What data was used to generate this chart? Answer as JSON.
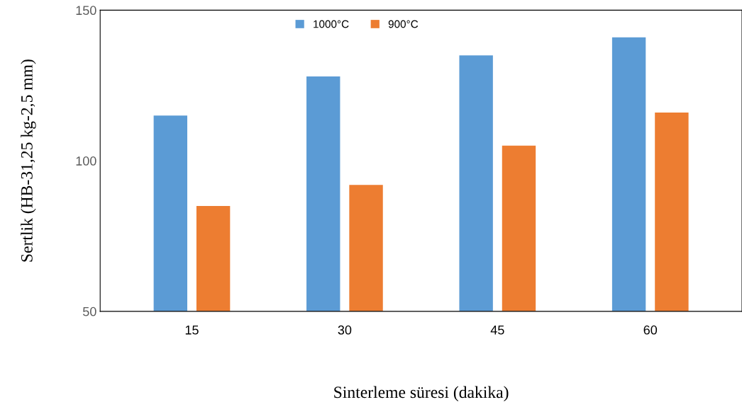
{
  "chart_data": {
    "type": "bar",
    "categories": [
      "15",
      "30",
      "45",
      "60"
    ],
    "series": [
      {
        "name": "1000°C",
        "color": "#5b9bd5",
        "values": [
          115,
          128,
          135,
          141
        ]
      },
      {
        "name": "900°C",
        "color": "#ed7d31",
        "values": [
          85,
          92,
          105,
          116
        ]
      }
    ],
    "xlabel": "Sinterleme süresi (dakika)",
    "ylabel": "Sertlik (HB-31,25 kg-2,5 mm)",
    "ylim": [
      50,
      150
    ],
    "yticks": [
      50,
      100,
      150
    ],
    "grid": false,
    "legend": "top"
  }
}
